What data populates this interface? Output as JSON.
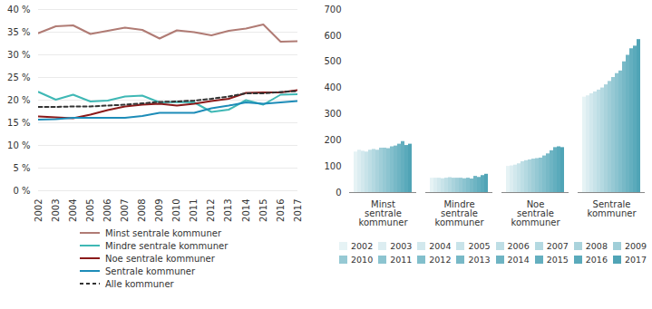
{
  "chart_data": [
    {
      "type": "line",
      "x": [
        2002,
        2003,
        2004,
        2005,
        2006,
        2007,
        2008,
        2009,
        2010,
        2011,
        2012,
        2013,
        2014,
        2015,
        2016,
        2017
      ],
      "xlim": [
        2002,
        2017
      ],
      "xticks": [
        2002,
        2003,
        2004,
        2005,
        2006,
        2007,
        2008,
        2009,
        2010,
        2011,
        2012,
        2013,
        2014,
        2015,
        2016,
        2017
      ],
      "ylim": [
        0,
        40
      ],
      "yticks": [
        {
          "value": 0,
          "label": "0 %"
        },
        {
          "value": 5,
          "label": "5 %"
        },
        {
          "value": 10,
          "label": "10 %"
        },
        {
          "value": 15,
          "label": "15 %"
        },
        {
          "value": 20,
          "label": "20 %"
        },
        {
          "value": 25,
          "label": "25 %"
        },
        {
          "value": 30,
          "label": "30 %"
        },
        {
          "value": 35,
          "label": "35 %"
        },
        {
          "value": 40,
          "label": "40 %"
        }
      ],
      "grid": true,
      "legend": "bottom",
      "series": [
        {
          "name": "Minst sentrale kommuner",
          "color": "#b07b74",
          "line_style": "solid",
          "values": [
            34.8,
            36.3,
            36.5,
            34.6,
            35.3,
            36.0,
            35.5,
            33.6,
            35.4,
            35.0,
            34.3,
            35.3,
            35.8,
            36.7,
            32.9,
            33.0
          ]
        },
        {
          "name": "Mindre sentrale kommuner",
          "color": "#3fb8b5",
          "line_style": "solid",
          "values": [
            21.8,
            20.1,
            21.2,
            19.7,
            19.9,
            20.8,
            21.0,
            19.5,
            19.6,
            19.5,
            17.4,
            17.9,
            20.0,
            19.0,
            21.2,
            21.3
          ]
        },
        {
          "name": "Noe sentrale kommuner",
          "color": "#8b1a1a",
          "line_style": "solid",
          "values": [
            16.4,
            16.2,
            16.0,
            16.8,
            17.8,
            18.6,
            19.0,
            19.2,
            18.8,
            19.2,
            19.8,
            20.3,
            21.6,
            21.7,
            21.7,
            22.2
          ]
        },
        {
          "name": "Sentrale kommuner",
          "color": "#1d8cb8",
          "line_style": "solid",
          "values": [
            15.7,
            15.8,
            16.1,
            16.1,
            16.1,
            16.1,
            16.5,
            17.2,
            17.2,
            17.2,
            18.2,
            18.8,
            19.5,
            19.2,
            19.5,
            19.8
          ]
        },
        {
          "name": "Alle kommuner",
          "color": "#333333",
          "line_style": "dashed",
          "values": [
            18.5,
            18.5,
            18.6,
            18.6,
            18.8,
            19.0,
            19.3,
            19.6,
            19.7,
            19.9,
            20.3,
            20.8,
            21.5,
            21.5,
            21.8,
            22.0
          ]
        }
      ]
    },
    {
      "type": "bar",
      "categories": [
        "Minst sentrale kommuner",
        "Mindre sentrale kommuner",
        "Noe sentrale kommuner",
        "Sentrale kommuner"
      ],
      "ylim": [
        0,
        700
      ],
      "yticks": [
        0,
        100,
        200,
        300,
        400,
        500,
        600,
        700
      ],
      "legend": "bottom",
      "series": [
        {
          "name": "2002",
          "color": "#e6f3f5",
          "values": [
            155,
            55,
            100,
            365
          ]
        },
        {
          "name": "2003",
          "color": "#dcedf1",
          "values": [
            162,
            55,
            102,
            370
          ]
        },
        {
          "name": "2004",
          "color": "#d2e8ed",
          "values": [
            158,
            55,
            105,
            378
          ]
        },
        {
          "name": "2005",
          "color": "#c8e3e9",
          "values": [
            155,
            53,
            110,
            385
          ]
        },
        {
          "name": "2006",
          "color": "#bedee5",
          "values": [
            162,
            55,
            118,
            392
          ]
        },
        {
          "name": "2007",
          "color": "#b4d9e1",
          "values": [
            165,
            57,
            122,
            400
          ]
        },
        {
          "name": "2008",
          "color": "#aad3dc",
          "values": [
            162,
            55,
            125,
            412
          ]
        },
        {
          "name": "2009",
          "color": "#a0ced8",
          "values": [
            170,
            55,
            128,
            425
          ]
        },
        {
          "name": "2010",
          "color": "#96c9d4",
          "values": [
            170,
            55,
            130,
            440
          ]
        },
        {
          "name": "2011",
          "color": "#8cc4d0",
          "values": [
            168,
            53,
            132,
            455
          ]
        },
        {
          "name": "2012",
          "color": "#82bfcc",
          "values": [
            175,
            55,
            140,
            465
          ]
        },
        {
          "name": "2013",
          "color": "#78b9c7",
          "values": [
            178,
            52,
            148,
            500
          ]
        },
        {
          "name": "2014",
          "color": "#6eb4c3",
          "values": [
            185,
            62,
            160,
            525
          ]
        },
        {
          "name": "2015",
          "color": "#64afbf",
          "values": [
            195,
            58,
            172,
            550
          ]
        },
        {
          "name": "2016",
          "color": "#5aaabb",
          "values": [
            180,
            65,
            175,
            560
          ]
        },
        {
          "name": "2017",
          "color": "#50a4b6",
          "values": [
            185,
            70,
            172,
            585
          ]
        }
      ]
    }
  ]
}
